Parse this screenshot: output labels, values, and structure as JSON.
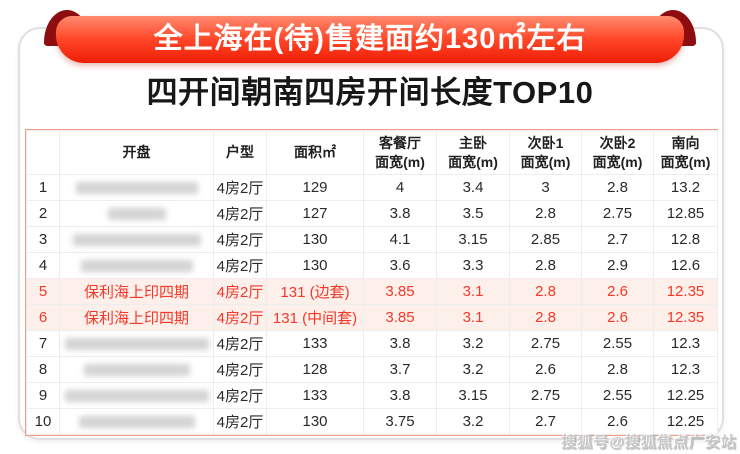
{
  "banner": {
    "text": "全上海在(待)售建面约130㎡左右"
  },
  "title": "四开间朝南四房开间长度TOP10",
  "watermark": "搜狐号@搜狐焦点广安站",
  "colors": {
    "ribbon_red_top": "#ff8a6e",
    "ribbon_red_bottom": "#ee1d06",
    "ribbon_fold": "#8e0d10",
    "highlight_text": "#f5382a",
    "highlight_bg": "#fdefe9",
    "table_border": "#f09d85"
  },
  "chart_data": {
    "type": "table",
    "title": "四开间朝南四房开间长度TOP10",
    "banner": "全上海在(待)售建面约130㎡左右",
    "columns": [
      "",
      "开盘",
      "户型",
      "面积㎡",
      "客餐厅\n面宽(m)",
      "主卧\n面宽(m)",
      "次卧1\n面宽(m)",
      "次卧2\n面宽(m)",
      "南向\n面宽(m)"
    ],
    "rows": [
      {
        "no": "1",
        "name": "",
        "name_blurred": true,
        "blur_w": 122,
        "type": "4房2厅",
        "area": "129",
        "living_width": "4",
        "master_width": "3.4",
        "bed1_width": "3",
        "bed2_width": "2.8",
        "south_width": "13.2",
        "highlight": false
      },
      {
        "no": "2",
        "name": "",
        "name_blurred": true,
        "blur_w": 58,
        "type": "4房2厅",
        "area": "127",
        "living_width": "3.8",
        "master_width": "3.5",
        "bed1_width": "2.8",
        "bed2_width": "2.75",
        "south_width": "12.85",
        "highlight": false
      },
      {
        "no": "3",
        "name": "",
        "name_blurred": true,
        "blur_w": 128,
        "type": "4房2厅",
        "area": "130",
        "living_width": "4.1",
        "master_width": "3.15",
        "bed1_width": "2.85",
        "bed2_width": "2.7",
        "south_width": "12.8",
        "highlight": false
      },
      {
        "no": "4",
        "name": "",
        "name_blurred": true,
        "blur_w": 112,
        "type": "4房2厅",
        "area": "130",
        "living_width": "3.6",
        "master_width": "3.3",
        "bed1_width": "2.8",
        "bed2_width": "2.9",
        "south_width": "12.6",
        "highlight": false
      },
      {
        "no": "5",
        "name": "保利海上印四期",
        "name_blurred": false,
        "blur_w": 0,
        "type": "4房2厅",
        "area": "131 (边套)",
        "living_width": "3.85",
        "master_width": "3.1",
        "bed1_width": "2.8",
        "bed2_width": "2.6",
        "south_width": "12.35",
        "highlight": true
      },
      {
        "no": "6",
        "name": "保利海上印四期",
        "name_blurred": false,
        "blur_w": 0,
        "type": "4房2厅",
        "area": "131 (中间套)",
        "living_width": "3.85",
        "master_width": "3.1",
        "bed1_width": "2.8",
        "bed2_width": "2.6",
        "south_width": "12.35",
        "highlight": true
      },
      {
        "no": "7",
        "name": "",
        "name_blurred": true,
        "blur_w": 144,
        "type": "4房2厅",
        "area": "133",
        "living_width": "3.8",
        "master_width": "3.2",
        "bed1_width": "2.75",
        "bed2_width": "2.55",
        "south_width": "12.3",
        "highlight": false
      },
      {
        "no": "8",
        "name": "",
        "name_blurred": true,
        "blur_w": 106,
        "type": "4房2厅",
        "area": "128",
        "living_width": "3.7",
        "master_width": "3.2",
        "bed1_width": "2.6",
        "bed2_width": "2.8",
        "south_width": "12.3",
        "highlight": false
      },
      {
        "no": "9",
        "name": "",
        "name_blurred": true,
        "blur_w": 144,
        "type": "4房2厅",
        "area": "133",
        "living_width": "3.8",
        "master_width": "3.15",
        "bed1_width": "2.75",
        "bed2_width": "2.55",
        "south_width": "12.25",
        "highlight": false
      },
      {
        "no": "10",
        "name": "",
        "name_blurred": true,
        "blur_w": 116,
        "type": "4房2厅",
        "area": "130",
        "living_width": "3.75",
        "master_width": "3.2",
        "bed1_width": "2.7",
        "bed2_width": "2.6",
        "south_width": "12.25",
        "highlight": false
      }
    ]
  }
}
